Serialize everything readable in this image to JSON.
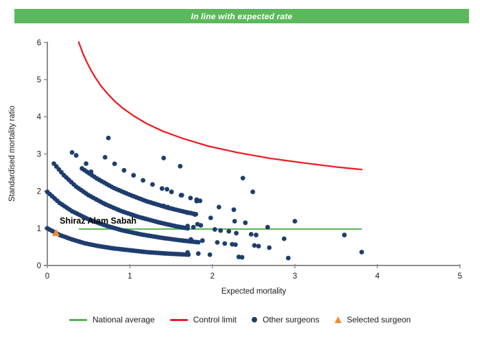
{
  "banner": {
    "text": "In line with expected rate",
    "color": "#5cb85c",
    "text_color": "#ffffff"
  },
  "chart_data": {
    "type": "scatter",
    "title": "",
    "xlabel": "Expected mortality",
    "ylabel": "Standardised mortality ratio",
    "xlim": [
      0,
      5
    ],
    "ylim": [
      0,
      6
    ],
    "x_ticks": [
      0,
      1,
      2,
      3,
      4,
      5
    ],
    "y_ticks": [
      0,
      1,
      2,
      3,
      4,
      5,
      6
    ],
    "grid": false,
    "legend_position": "bottom",
    "axis_color": "#8c8c8c",
    "tick_label_color": "#1a1a1a",
    "national_average": {
      "label": "National average",
      "color": "#53b253",
      "y": 0.98,
      "x_start": 0.38,
      "x_end": 3.81
    },
    "control_limit": {
      "label": "Control limit",
      "color": "#ec1c24",
      "points": [
        [
          0.38,
          6.01
        ],
        [
          0.4,
          5.89
        ],
        [
          0.43,
          5.71
        ],
        [
          0.47,
          5.51
        ],
        [
          0.52,
          5.29
        ],
        [
          0.58,
          5.06
        ],
        [
          0.65,
          4.83
        ],
        [
          0.73,
          4.62
        ],
        [
          0.82,
          4.41
        ],
        [
          0.92,
          4.22
        ],
        [
          1.05,
          4.02
        ],
        [
          1.2,
          3.82
        ],
        [
          1.4,
          3.61
        ],
        [
          1.65,
          3.41
        ],
        [
          1.95,
          3.21
        ],
        [
          2.3,
          3.04
        ],
        [
          2.7,
          2.88
        ],
        [
          3.1,
          2.76
        ],
        [
          3.5,
          2.65
        ],
        [
          3.81,
          2.58
        ]
      ]
    },
    "other_surgeons": {
      "label": "Other surgeons",
      "color": "#1e3d6e",
      "bands": [
        {
          "spacing": 0.03,
          "anchors": [
            [
              0.0,
              1.0
            ],
            [
              0.15,
              0.82
            ],
            [
              0.3,
              0.7
            ],
            [
              0.45,
              0.6
            ],
            [
              0.6,
              0.53
            ],
            [
              0.8,
              0.46
            ],
            [
              1.0,
              0.41
            ],
            [
              1.2,
              0.36
            ],
            [
              1.45,
              0.32
            ],
            [
              1.72,
              0.29
            ]
          ]
        },
        {
          "spacing": 0.03,
          "anchors": [
            [
              0.08,
              2.74
            ],
            [
              0.2,
              2.43
            ],
            [
              0.35,
              2.12
            ],
            [
              0.5,
              1.89
            ],
            [
              0.7,
              1.65
            ],
            [
              0.9,
              1.46
            ],
            [
              1.1,
              1.31
            ],
            [
              1.35,
              1.16
            ],
            [
              1.55,
              1.06
            ],
            [
              1.72,
              0.99
            ]
          ]
        },
        {
          "spacing": 0.03,
          "anchors": [
            [
              0.0,
              1.98
            ],
            [
              0.15,
              1.68
            ],
            [
              0.3,
              1.46
            ],
            [
              0.5,
              1.24
            ],
            [
              0.7,
              1.08
            ],
            [
              0.9,
              0.95
            ],
            [
              1.15,
              0.83
            ],
            [
              1.4,
              0.74
            ],
            [
              1.6,
              0.68
            ],
            [
              1.85,
              0.62
            ]
          ]
        },
        {
          "spacing": 0.03,
          "anchors": [
            [
              0.42,
              2.61
            ],
            [
              0.6,
              2.34
            ],
            [
              0.8,
              2.09
            ],
            [
              1.0,
              1.9
            ],
            [
              1.2,
              1.73
            ],
            [
              1.45,
              1.56
            ],
            [
              1.65,
              1.45
            ],
            [
              1.82,
              1.37
            ]
          ]
        },
        {
          "spacing": 0.115,
          "anchors": [
            [
              0.7,
              2.91
            ],
            [
              0.93,
              2.56
            ],
            [
              1.16,
              2.29
            ],
            [
              1.39,
              2.07
            ],
            [
              1.62,
              1.89
            ],
            [
              1.85,
              1.74
            ]
          ]
        }
      ],
      "points": [
        [
          0.74,
          3.43
        ],
        [
          0.3,
          3.04
        ],
        [
          0.35,
          2.96
        ],
        [
          0.47,
          2.74
        ],
        [
          0.53,
          2.52
        ],
        [
          1.41,
          2.89
        ],
        [
          1.61,
          2.67
        ],
        [
          2.37,
          2.35
        ],
        [
          2.49,
          1.98
        ],
        [
          1.45,
          2.05
        ],
        [
          1.63,
          1.89
        ],
        [
          1.81,
          1.77
        ],
        [
          1.41,
          1.6
        ],
        [
          1.46,
          1.57
        ],
        [
          1.7,
          1.42
        ],
        [
          1.79,
          1.37
        ],
        [
          1.81,
          1.73
        ],
        [
          2.08,
          1.57
        ],
        [
          2.26,
          1.5
        ],
        [
          1.98,
          1.28
        ],
        [
          2.27,
          1.19
        ],
        [
          2.4,
          1.15
        ],
        [
          3.0,
          1.19
        ],
        [
          1.82,
          1.11
        ],
        [
          1.86,
          1.08
        ],
        [
          1.7,
          1.06
        ],
        [
          1.77,
          1.03
        ],
        [
          2.03,
          0.97
        ],
        [
          2.1,
          0.94
        ],
        [
          2.2,
          0.92
        ],
        [
          2.29,
          0.87
        ],
        [
          2.47,
          0.84
        ],
        [
          2.53,
          0.82
        ],
        [
          2.67,
          1.03
        ],
        [
          2.87,
          0.72
        ],
        [
          1.74,
          0.7
        ],
        [
          1.88,
          0.67
        ],
        [
          2.06,
          0.62
        ],
        [
          2.15,
          0.59
        ],
        [
          2.24,
          0.57
        ],
        [
          2.28,
          0.56
        ],
        [
          2.51,
          0.54
        ],
        [
          2.56,
          0.52
        ],
        [
          2.69,
          0.48
        ],
        [
          1.7,
          0.35
        ],
        [
          1.83,
          0.32
        ],
        [
          1.97,
          0.29
        ],
        [
          2.32,
          0.23
        ],
        [
          2.36,
          0.22
        ],
        [
          2.92,
          0.2
        ],
        [
          3.6,
          0.82
        ],
        [
          3.81,
          0.36
        ]
      ]
    },
    "selected_surgeon": {
      "label": "Selected surgeon",
      "name": "Shiraz Alam Sabah",
      "color": "#ef8b33",
      "x": 0.105,
      "y": 0.875
    }
  }
}
